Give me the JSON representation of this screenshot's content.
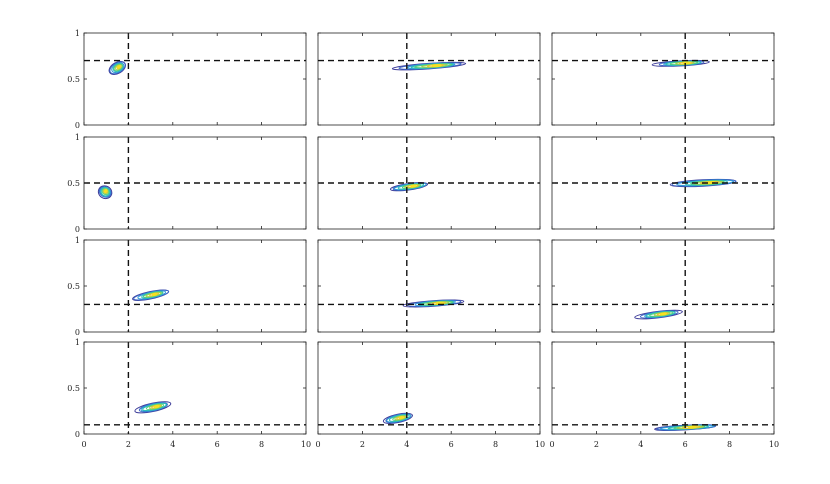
{
  "chart_data": {
    "type": "contour",
    "layout": {
      "rows": 4,
      "cols": 3
    },
    "xlim": [
      0,
      10
    ],
    "ylim": [
      0,
      1
    ],
    "x_ticks": [
      "0",
      "2",
      "4",
      "6",
      "8",
      "10"
    ],
    "y_ticks": [
      "0",
      "0.5",
      "1"
    ],
    "grid": false,
    "contour_level_colors": [
      "#3b3a98",
      "#3a66c8",
      "#2d9bd6",
      "#2cbfb6",
      "#55cf7c",
      "#a6d24f",
      "#e6c72e",
      "#f6e120"
    ],
    "panels": [
      {
        "row": 1,
        "col": 1,
        "ref_x": 2,
        "ref_y": 0.7,
        "center": [
          1.5,
          0.62
        ],
        "spread": [
          0.8,
          0.12
        ],
        "tilt_deg": -30
      },
      {
        "row": 1,
        "col": 2,
        "ref_x": 4,
        "ref_y": 0.7,
        "center": [
          5.0,
          0.64
        ],
        "spread": [
          3.1,
          0.06
        ],
        "tilt_deg": -4
      },
      {
        "row": 1,
        "col": 3,
        "ref_x": 6,
        "ref_y": 0.7,
        "center": [
          5.8,
          0.67
        ],
        "spread": [
          2.4,
          0.055
        ],
        "tilt_deg": -3
      },
      {
        "row": 2,
        "col": 1,
        "ref_x": 2,
        "ref_y": 0.5,
        "center": [
          0.95,
          0.4
        ],
        "spread": [
          0.55,
          0.15
        ],
        "tilt_deg": -60
      },
      {
        "row": 2,
        "col": 2,
        "ref_x": 4,
        "ref_y": 0.5,
        "center": [
          4.1,
          0.46
        ],
        "spread": [
          1.8,
          0.07
        ],
        "tilt_deg": -8
      },
      {
        "row": 2,
        "col": 3,
        "ref_x": 6,
        "ref_y": 0.5,
        "center": [
          6.8,
          0.5
        ],
        "spread": [
          3.2,
          0.07
        ],
        "tilt_deg": -3
      },
      {
        "row": 3,
        "col": 1,
        "ref_x": 2,
        "ref_y": 0.3,
        "center": [
          3.0,
          0.4
        ],
        "spread": [
          1.7,
          0.08
        ],
        "tilt_deg": -12
      },
      {
        "row": 3,
        "col": 2,
        "ref_x": 4,
        "ref_y": 0.3,
        "center": [
          5.2,
          0.31
        ],
        "spread": [
          2.6,
          0.06
        ],
        "tilt_deg": -4
      },
      {
        "row": 3,
        "col": 3,
        "ref_x": 6,
        "ref_y": 0.3,
        "center": [
          4.8,
          0.19
        ],
        "spread": [
          2.0,
          0.07
        ],
        "tilt_deg": -7
      },
      {
        "row": 4,
        "col": 1,
        "ref_x": 2,
        "ref_y": 0.1,
        "center": [
          3.1,
          0.29
        ],
        "spread": [
          1.6,
          0.09
        ],
        "tilt_deg": -12
      },
      {
        "row": 4,
        "col": 2,
        "ref_x": 4,
        "ref_y": 0.1,
        "center": [
          3.6,
          0.17
        ],
        "spread": [
          1.4,
          0.09
        ],
        "tilt_deg": -12
      },
      {
        "row": 4,
        "col": 3,
        "ref_x": 6,
        "ref_y": 0.1,
        "center": [
          6.0,
          0.07
        ],
        "spread": [
          3.0,
          0.05
        ],
        "tilt_deg": -3
      }
    ]
  }
}
